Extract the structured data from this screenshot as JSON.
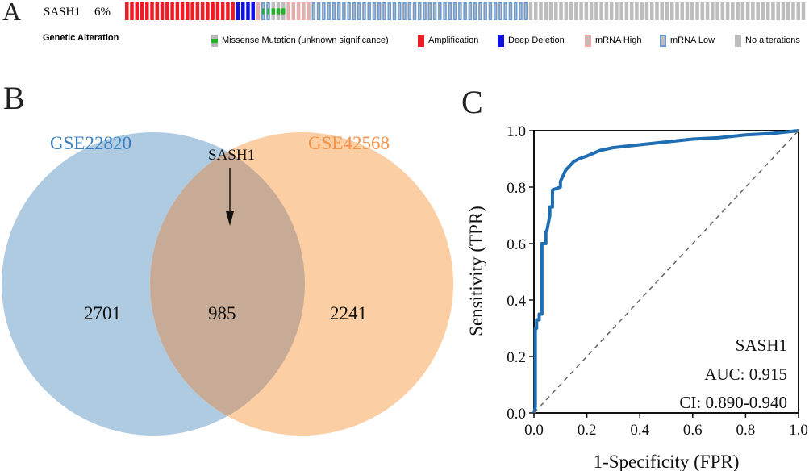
{
  "panels": {
    "a": "A",
    "b": "B",
    "c": "C"
  },
  "oncoprint": {
    "gene": "SASH1",
    "percent": "6%",
    "track_label": "Genetic Alteration",
    "samples": [
      {
        "type": "amplification",
        "count": 22
      },
      {
        "type": "deep_deletion",
        "count": 4
      },
      {
        "type": "mrna_high",
        "count": 1
      },
      {
        "type": "missense_mrna_low",
        "count": 2
      },
      {
        "type": "missense",
        "count": 3
      },
      {
        "type": "mrna_high",
        "count": 5
      },
      {
        "type": "mrna_low",
        "count": 43
      },
      {
        "type": "no_alteration",
        "count": 55
      }
    ],
    "legend": [
      {
        "key": "missense",
        "label": "Missense Mutation (unknown significance)"
      },
      {
        "key": "amplification",
        "label": "Amplification"
      },
      {
        "key": "deep_deletion",
        "label": "Deep Deletion"
      },
      {
        "key": "mrna_high",
        "label": "mRNA High"
      },
      {
        "key": "mrna_low",
        "label": "mRNA Low"
      },
      {
        "key": "no_alteration",
        "label": "No alterations"
      }
    ],
    "colors": {
      "amplification": "#ee1c25",
      "deep_deletion": "#1010e8",
      "missense": "#22b422",
      "mrna_high_border": "#f4a7a7",
      "mrna_low_border": "#6c9bd2",
      "no_alteration": "#bdbdbd"
    }
  },
  "venn": {
    "set_a": {
      "name": "GSE22820",
      "only": 2701,
      "color": "#aecbe2"
    },
    "set_b": {
      "name": "GSE42568",
      "only": 2241,
      "color": "#fbcfa3"
    },
    "intersection": 985,
    "intersection_color": "#c8ab96",
    "annotation": "SASH1"
  },
  "chart_data": {
    "type": "line",
    "title": "",
    "xlabel": "1-Specificity (FPR)",
    "ylabel": "Sensitivity (TPR)",
    "xlim": [
      0,
      1
    ],
    "ylim": [
      0,
      1
    ],
    "xticks": [
      "0.0",
      "0.2",
      "0.4",
      "0.6",
      "0.8",
      "1.0"
    ],
    "yticks": [
      "0.0",
      "0.2",
      "0.4",
      "0.6",
      "0.8",
      "1.0"
    ],
    "series": [
      {
        "name": "SASH1",
        "color": "#1f6db3",
        "x": [
          0,
          0.005,
          0.005,
          0.01,
          0.01,
          0.02,
          0.02,
          0.03,
          0.03,
          0.045,
          0.045,
          0.05,
          0.06,
          0.06,
          0.07,
          0.07,
          0.1,
          0.1,
          0.11,
          0.12,
          0.13,
          0.15,
          0.17,
          0.2,
          0.25,
          0.3,
          0.4,
          0.5,
          0.6,
          0.7,
          0.8,
          0.9,
          1.0
        ],
        "y": [
          0,
          0.02,
          0.3,
          0.3,
          0.33,
          0.33,
          0.35,
          0.35,
          0.6,
          0.6,
          0.64,
          0.65,
          0.7,
          0.73,
          0.73,
          0.79,
          0.8,
          0.82,
          0.84,
          0.86,
          0.87,
          0.89,
          0.9,
          0.91,
          0.93,
          0.94,
          0.95,
          0.96,
          0.97,
          0.975,
          0.985,
          0.99,
          1.0
        ]
      },
      {
        "name": "reference",
        "color": "#666666",
        "style": "dashed",
        "x": [
          0,
          1
        ],
        "y": [
          0,
          1
        ]
      }
    ],
    "annotations": [
      "SASH1",
      "AUC: 0.915",
      "CI: 0.890-0.940"
    ]
  }
}
